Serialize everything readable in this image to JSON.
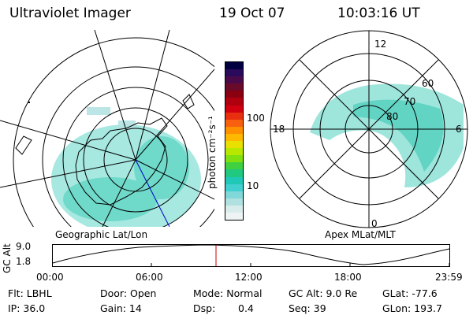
{
  "header": {
    "title": "Ultraviolet Imager",
    "date": "19 Oct 07",
    "time": "10:03:16 UT"
  },
  "colorbar": {
    "label": "photon cm⁻²s⁻¹",
    "ticks": [
      "100",
      "10"
    ],
    "colors": [
      "#000040",
      "#2a0a5a",
      "#4a0a4a",
      "#6a0a2a",
      "#8a0010",
      "#b00010",
      "#d00010",
      "#e83010",
      "#f86010",
      "#ff9000",
      "#ffb800",
      "#e8e000",
      "#b8e800",
      "#80e010",
      "#40d040",
      "#20c880",
      "#20c8b8",
      "#40d0d0",
      "#80d8d8",
      "#b0e0e0",
      "#d8ecec",
      "#eef4f4"
    ]
  },
  "maps": {
    "left_caption": "Geographic Lat/Lon",
    "right_caption": "Apex MLat/MLT",
    "mlt_labels": [
      "12",
      "18",
      "6",
      "0"
    ],
    "mlat_labels": [
      "60",
      "70",
      "80"
    ]
  },
  "altitude_plot": {
    "ylabel": "GC Alt",
    "yticks": [
      "9.0",
      "1.8"
    ],
    "xticks": [
      "00:00",
      "06:00",
      "12:00",
      "18:00",
      "23:59"
    ]
  },
  "info": {
    "filter": "Flt: LBHL",
    "ip": "IP: 36.0",
    "door": "Door: Open",
    "gain": "Gain: 14",
    "mode": "Mode: Normal",
    "dsp_label": "Dsp:",
    "dsp_value": "0.4",
    "gc_alt": "GC Alt: 9.0 Re",
    "seq": "Seq: 39",
    "glat": "GLat: -77.6",
    "glon": "GLon: 193.7"
  },
  "accent": {
    "orbit_marker": "#cc0000",
    "meridian": "#0000cc"
  }
}
